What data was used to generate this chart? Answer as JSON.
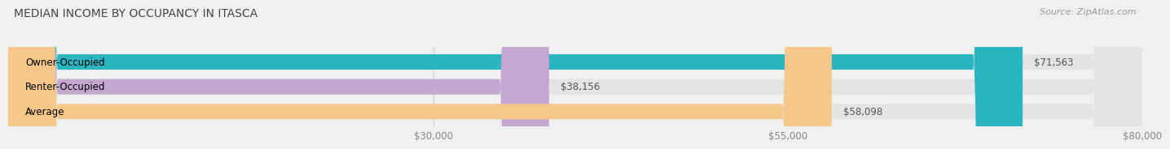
{
  "title": "MEDIAN INCOME BY OCCUPANCY IN ITASCA",
  "source": "Source: ZipAtlas.com",
  "categories": [
    "Owner-Occupied",
    "Renter-Occupied",
    "Average"
  ],
  "values": [
    71563,
    38156,
    58098
  ],
  "labels": [
    "$71,563",
    "$38,156",
    "$58,098"
  ],
  "bar_colors": [
    "#2ab5c1",
    "#c4a8d0",
    "#f5c889"
  ],
  "xlim": [
    0,
    80000
  ],
  "xticks": [
    30000,
    55000,
    80000
  ],
  "xticklabels": [
    "$30,000",
    "$55,000",
    "$80,000"
  ],
  "title_fontsize": 10,
  "source_fontsize": 8,
  "label_fontsize": 8.5,
  "tick_fontsize": 8.5,
  "background_color": "#f0f0f0",
  "bar_background_color": "#e4e4e4",
  "bar_height": 0.62
}
